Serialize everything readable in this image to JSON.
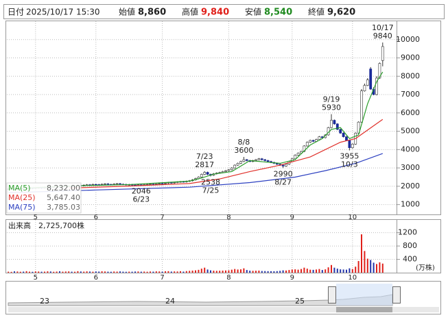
{
  "chart_data": {
    "type": "candlestick",
    "header": {
      "date_label": "日付",
      "datetime": "2025/10/17 15:30",
      "open": {
        "label": "始値",
        "price": {
          "value": 8860,
          "label": "8,860"
        }
      },
      "high": {
        "label": "高値",
        "price": {
          "value": 9840,
          "label": "9,840"
        }
      },
      "low": {
        "label": "安値",
        "price": {
          "value": 8540,
          "label": "8,540"
        }
      },
      "close": {
        "label": "終値",
        "price": {
          "value": 9620,
          "label": "9,620"
        }
      }
    },
    "price": {
      "ylim": [
        500,
        11000
      ],
      "yticks": [
        1000,
        2000,
        3000,
        4000,
        5000,
        6000,
        7000,
        8000,
        9000,
        10000
      ],
      "grid": true,
      "up_color": "#ffffff",
      "down_color": "#1a2a9a",
      "open": [
        1840,
        1850,
        1860,
        1840,
        1870,
        1880,
        1860,
        1890,
        1900,
        1880,
        1910,
        1920,
        1900,
        1930,
        1950,
        1940,
        1960,
        1980,
        1970,
        1990,
        2000,
        2010,
        1990,
        2020,
        2050,
        2030,
        2060,
        2080,
        2070,
        2100,
        2090,
        2080,
        2110,
        2130,
        2100,
        2090,
        2120,
        2140,
        2110,
        2100,
        2080,
        2090,
        2070,
        2060,
        2080,
        2070,
        2090,
        2100,
        2120,
        2110,
        2130,
        2150,
        2140,
        2170,
        2200,
        2180,
        2210,
        2230,
        2250,
        2240,
        2270,
        2300,
        2350,
        2420,
        2500,
        2650,
        2760,
        2650,
        2600,
        2680,
        2720,
        2750,
        2800,
        2850,
        2900,
        3000,
        3150,
        3250,
        3350,
        3450,
        3400,
        3350,
        3400,
        3450,
        3500,
        3450,
        3400,
        3350,
        3300,
        3250,
        3200,
        3150,
        3100,
        3200,
        3350,
        3500,
        3700,
        3800,
        3900,
        4200,
        4400,
        4500,
        4450,
        4550,
        4700,
        4650,
        4800,
        5200,
        5600,
        5400,
        5100,
        4900,
        4700,
        4500,
        4100,
        4300,
        4900,
        5500,
        7200,
        7500,
        8400,
        7300,
        7000,
        7900,
        8860
      ],
      "high": [
        1890,
        1900,
        1900,
        1910,
        1920,
        1920,
        1930,
        1940,
        1940,
        1950,
        1960,
        1960,
        1970,
        1990,
        1990,
        2000,
        2020,
        2020,
        2030,
        2040,
        2050,
        2050,
        2060,
        2090,
        2090,
        2100,
        2120,
        2120,
        2140,
        2140,
        2130,
        2150,
        2170,
        2170,
        2140,
        2160,
        2180,
        2180,
        2150,
        2140,
        2130,
        2130,
        2110,
        2120,
        2120,
        2130,
        2140,
        2160,
        2160,
        2170,
        2190,
        2190,
        2210,
        2240,
        2240,
        2250,
        2270,
        2290,
        2290,
        2310,
        2340,
        2390,
        2460,
        2540,
        2690,
        2817,
        2800,
        2690,
        2720,
        2760,
        2790,
        2840,
        2890,
        2940,
        3040,
        3190,
        3290,
        3390,
        3600,
        3490,
        3440,
        3440,
        3490,
        3540,
        3540,
        3490,
        3440,
        3390,
        3340,
        3290,
        3240,
        3190,
        3240,
        3390,
        3540,
        3740,
        3840,
        3940,
        4240,
        4440,
        4540,
        4540,
        4590,
        4740,
        4740,
        4840,
        5240,
        5930,
        5640,
        5440,
        5140,
        4940,
        4740,
        4540,
        4340,
        4940,
        5540,
        7300,
        7600,
        7900,
        8500,
        7400,
        8000,
        8750,
        9840
      ],
      "low": [
        1800,
        1810,
        1800,
        1800,
        1830,
        1820,
        1820,
        1850,
        1840,
        1840,
        1870,
        1860,
        1860,
        1890,
        1900,
        1900,
        1920,
        1930,
        1930,
        1950,
        1960,
        1950,
        1950,
        1980,
        1990,
        1990,
        2020,
        2030,
        2030,
        2050,
        2040,
        2040,
        2070,
        2060,
        2050,
        2050,
        2080,
        2070,
        2060,
        2040,
        2040,
        2030,
        2020,
        2020,
        2046,
        2030,
        2050,
        2060,
        2070,
        2070,
        2090,
        2100,
        2100,
        2130,
        2140,
        2140,
        2170,
        2190,
        2200,
        2200,
        2230,
        2260,
        2310,
        2380,
        2460,
        2610,
        2610,
        2538,
        2560,
        2640,
        2680,
        2710,
        2760,
        2810,
        2860,
        2960,
        3110,
        3210,
        3310,
        3360,
        3310,
        3310,
        3360,
        3410,
        3410,
        3360,
        3310,
        3260,
        3210,
        3160,
        3110,
        2990,
        3060,
        3160,
        3310,
        3460,
        3660,
        3760,
        3860,
        4160,
        4360,
        4410,
        4410,
        4510,
        4610,
        4610,
        4760,
        5160,
        5360,
        5060,
        4860,
        4660,
        4460,
        3955,
        4060,
        4260,
        4860,
        5460,
        7160,
        7460,
        7260,
        6960,
        6960,
        7860,
        8540
      ],
      "close": [
        1850,
        1860,
        1840,
        1870,
        1880,
        1860,
        1890,
        1900,
        1880,
        1910,
        1920,
        1900,
        1930,
        1950,
        1940,
        1960,
        1980,
        1970,
        1990,
        2000,
        2010,
        1990,
        2020,
        2050,
        2030,
        2060,
        2080,
        2070,
        2100,
        2090,
        2080,
        2110,
        2130,
        2100,
        2090,
        2120,
        2140,
        2110,
        2100,
        2080,
        2090,
        2070,
        2060,
        2080,
        2070,
        2090,
        2100,
        2120,
        2110,
        2130,
        2150,
        2140,
        2170,
        2200,
        2180,
        2210,
        2230,
        2250,
        2240,
        2270,
        2300,
        2350,
        2420,
        2500,
        2650,
        2760,
        2650,
        2600,
        2680,
        2720,
        2750,
        2800,
        2850,
        2900,
        3000,
        3150,
        3250,
        3350,
        3450,
        3400,
        3350,
        3400,
        3450,
        3500,
        3450,
        3400,
        3350,
        3300,
        3250,
        3200,
        3150,
        3100,
        3200,
        3350,
        3500,
        3700,
        3800,
        3900,
        4200,
        4400,
        4500,
        4450,
        4550,
        4700,
        4650,
        4800,
        5200,
        5600,
        5400,
        5100,
        4900,
        4700,
        4500,
        4100,
        4300,
        4900,
        5500,
        7200,
        7500,
        7800,
        7300,
        7000,
        7900,
        8700,
        9620
      ]
    },
    "xticks": [
      {
        "value": 9,
        "label": "5"
      },
      {
        "value": 29,
        "label": "6"
      },
      {
        "value": 51,
        "label": "7"
      },
      {
        "value": 73,
        "label": "8"
      },
      {
        "value": 94,
        "label": "9"
      },
      {
        "value": 114,
        "label": "10"
      }
    ],
    "ma": [
      {
        "name": "MA(5)",
        "color": "#2a9d2a",
        "value_label": "8,232.00",
        "x": [
          0,
          20,
          40,
          60,
          64,
          68,
          74,
          80,
          90,
          95,
          100,
          104,
          107,
          110,
          113,
          116,
          119,
          122,
          124
        ],
        "values": [
          1860,
          2010,
          2090,
          2280,
          2450,
          2660,
          2800,
          3400,
          3250,
          3450,
          4250,
          4600,
          5100,
          5200,
          4600,
          4800,
          6500,
          7700,
          8232
        ]
      },
      {
        "name": "MA(25)",
        "color": "#e0302a",
        "value_label": "5,647.40",
        "x": [
          20,
          40,
          60,
          70,
          80,
          90,
          100,
          110,
          115,
          124
        ],
        "values": [
          1900,
          2010,
          2150,
          2400,
          2800,
          3150,
          3600,
          4400,
          4600,
          5647.4
        ]
      },
      {
        "name": "MA(75)",
        "color": "#2b3fc0",
        "value_label": "3,785.03",
        "x": [
          0,
          30,
          60,
          80,
          95,
          105,
          115,
          124
        ],
        "values": [
          1650,
          1800,
          1950,
          2200,
          2500,
          2850,
          3250,
          3785.03
        ]
      }
    ],
    "annotations": [
      {
        "date": "10/17",
        "value": 9840
      },
      {
        "date": "9/19",
        "value": 5930
      },
      {
        "date": "8/8",
        "value": 3600
      },
      {
        "date": "7/23",
        "value": 2817
      },
      {
        "date": "7/25",
        "value": 2538
      },
      {
        "date": "6/23",
        "value": 2046
      },
      {
        "date": "8/27",
        "value": 2990
      },
      {
        "date": "10/3",
        "value": 3955
      }
    ],
    "volume": {
      "label": "出来高",
      "total": {
        "value": 2725700,
        "label": "2,725,700株"
      },
      "unit": "(万株)",
      "ylim": [
        0,
        1500
      ],
      "yticks": [
        400,
        800,
        1200
      ],
      "up_color": "#e0201a",
      "down_color": "#2233aa",
      "values": [
        30,
        25,
        40,
        35,
        28,
        32,
        45,
        30,
        26,
        38,
        34,
        29,
        31,
        40,
        36,
        27,
        33,
        42,
        30,
        35,
        38,
        30,
        28,
        44,
        36,
        31,
        39,
        34,
        29,
        37,
        33,
        41,
        36,
        30,
        28,
        35,
        32,
        38,
        30,
        27,
        31,
        29,
        34,
        36,
        30,
        33,
        28,
        35,
        31,
        40,
        37,
        30,
        42,
        45,
        33,
        38,
        36,
        44,
        32,
        48,
        55,
        62,
        70,
        85,
        120,
        150,
        95,
        70,
        60,
        55,
        58,
        62,
        66,
        70,
        90,
        110,
        95,
        100,
        130,
        80,
        60,
        55,
        58,
        62,
        50,
        48,
        45,
        44,
        42,
        46,
        55,
        70,
        65,
        80,
        95,
        100,
        90,
        110,
        150,
        120,
        90,
        85,
        95,
        110,
        80,
        100,
        160,
        230,
        150,
        120,
        100,
        95,
        90,
        130,
        110,
        180,
        350,
        1150,
        650,
        420,
        380,
        300,
        260,
        310,
        272.57
      ]
    },
    "navigator": {
      "labels": [
        "23",
        "24",
        "25"
      ]
    }
  }
}
